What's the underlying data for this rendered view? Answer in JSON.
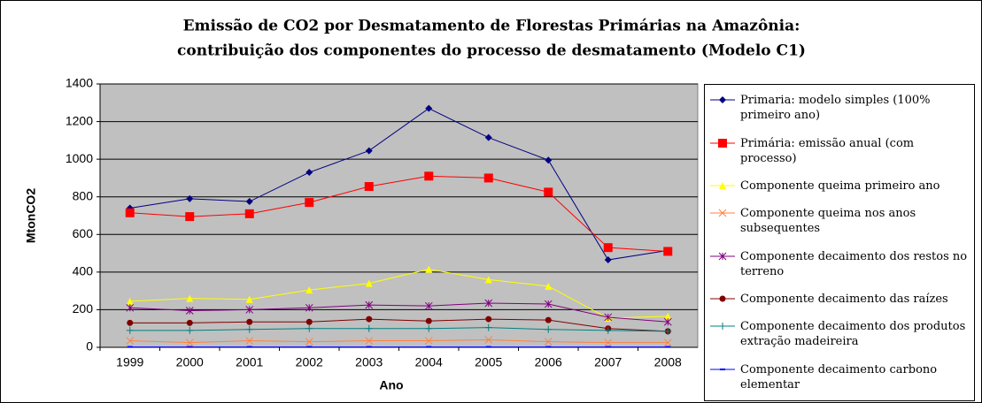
{
  "chart_data": {
    "type": "line",
    "title": "Emissão de CO2 por Desmatamento de Florestas Primárias na Amazônia:",
    "subtitle": "contribuição dos componentes do processo de desmatamento (Modelo C1)",
    "x_label": "Ano",
    "y_label": "MtonCO2",
    "categories": [
      "1999",
      "2000",
      "2001",
      "2002",
      "2003",
      "2004",
      "2005",
      "2006",
      "2007",
      "2008"
    ],
    "ylim": [
      0,
      1400
    ],
    "yticks": [
      0,
      200,
      400,
      600,
      800,
      1000,
      1200,
      1400
    ],
    "grid": true,
    "legend": "right",
    "series": [
      {
        "name": "Primaria: modelo simples (100% primeiro ano)",
        "color": "#000080",
        "marker": "diamond",
        "values": [
          740,
          790,
          775,
          930,
          1045,
          1270,
          1115,
          995,
          465,
          515
        ]
      },
      {
        "name": "Primária: emissão anual (com processo)",
        "color": "#ff0000",
        "marker": "square",
        "values": [
          715,
          695,
          710,
          770,
          855,
          910,
          900,
          825,
          530,
          510
        ]
      },
      {
        "name": "Componente queima primeiro ano",
        "color": "#ffff00",
        "marker": "triangle",
        "values": [
          245,
          260,
          255,
          305,
          340,
          415,
          360,
          325,
          155,
          165
        ]
      },
      {
        "name": "Componente queima nos anos subsequentes",
        "color": "#ff8040",
        "marker": "x",
        "values": [
          35,
          25,
          35,
          30,
          35,
          35,
          40,
          30,
          25,
          25
        ]
      },
      {
        "name": "Componente decaimento dos restos no terreno",
        "color": "#800080",
        "marker": "star",
        "values": [
          210,
          195,
          200,
          210,
          225,
          220,
          235,
          230,
          160,
          135
        ]
      },
      {
        "name": "Componente decaimento das raízes",
        "color": "#800000",
        "marker": "circle",
        "values": [
          130,
          130,
          135,
          135,
          150,
          140,
          150,
          145,
          100,
          85
        ]
      },
      {
        "name": "Componente decaimento dos produtos extração madeireira",
        "color": "#008080",
        "marker": "plus",
        "values": [
          90,
          90,
          95,
          100,
          100,
          100,
          105,
          95,
          90,
          85
        ]
      },
      {
        "name": "Componente decaimento carbono elementar",
        "color": "#0000ff",
        "marker": "dash",
        "values": [
          2,
          2,
          2,
          2,
          2,
          2,
          2,
          2,
          2,
          2
        ]
      }
    ]
  }
}
